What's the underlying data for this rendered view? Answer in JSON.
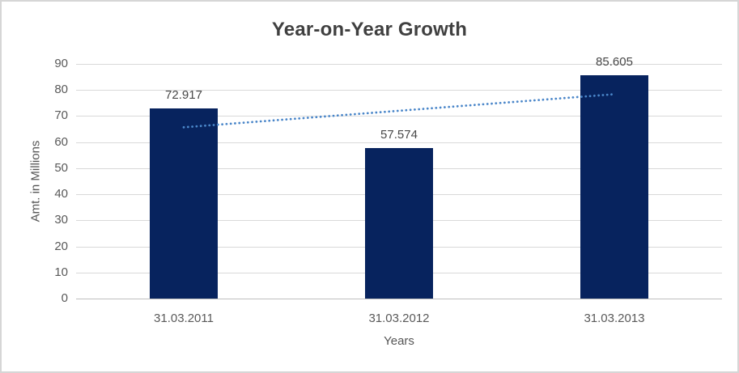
{
  "chart_data": {
    "type": "bar",
    "title": "Year-on-Year Growth",
    "categories": [
      "31.03.2011",
      "31.03.2012",
      "31.03.2013"
    ],
    "values": [
      72.917,
      57.574,
      85.605
    ],
    "data_labels": [
      "72.917",
      "57.574",
      "85.605"
    ],
    "xlabel": "Years",
    "ylabel": "Amt. in Millions",
    "ylim": [
      0,
      90
    ],
    "yticks": [
      0,
      10,
      20,
      30,
      40,
      50,
      60,
      70,
      80,
      90
    ],
    "grid": true,
    "legend": "none",
    "trendline": {
      "type": "linear",
      "style": "dotted",
      "start_value": 65.69,
      "end_value": 78.38
    }
  },
  "colors": {
    "bar": "#07235e",
    "trendline": "#4a86c9",
    "gridline": "#d9d9d9",
    "axis_line": "#bfbfbf",
    "title_text": "#404040",
    "tick_text": "#595959",
    "data_label_text": "#484848",
    "frame_border": "#d6d6d6",
    "background": "#ffffff"
  }
}
